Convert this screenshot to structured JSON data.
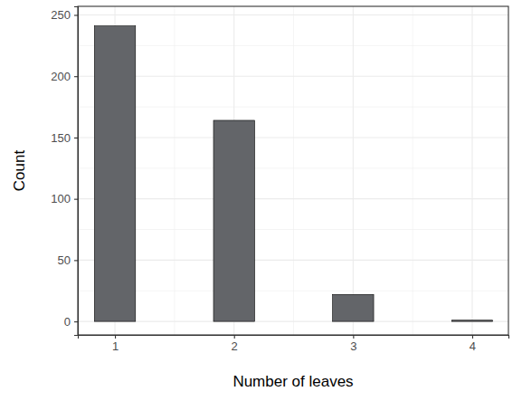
{
  "chart_data": {
    "type": "bar",
    "x_label": "Number of leaves",
    "y_label": "Count",
    "x": [
      1,
      2,
      3,
      4
    ],
    "values": [
      241,
      164,
      22,
      1
    ],
    "color": "#636569",
    "xlim": [
      0.688,
      4.304
    ],
    "xticks": [
      1,
      2,
      3,
      4
    ],
    "ylim": [
      -11,
      257
    ],
    "yticks": [
      0,
      50,
      100,
      150,
      200,
      250
    ],
    "grid": true
  }
}
